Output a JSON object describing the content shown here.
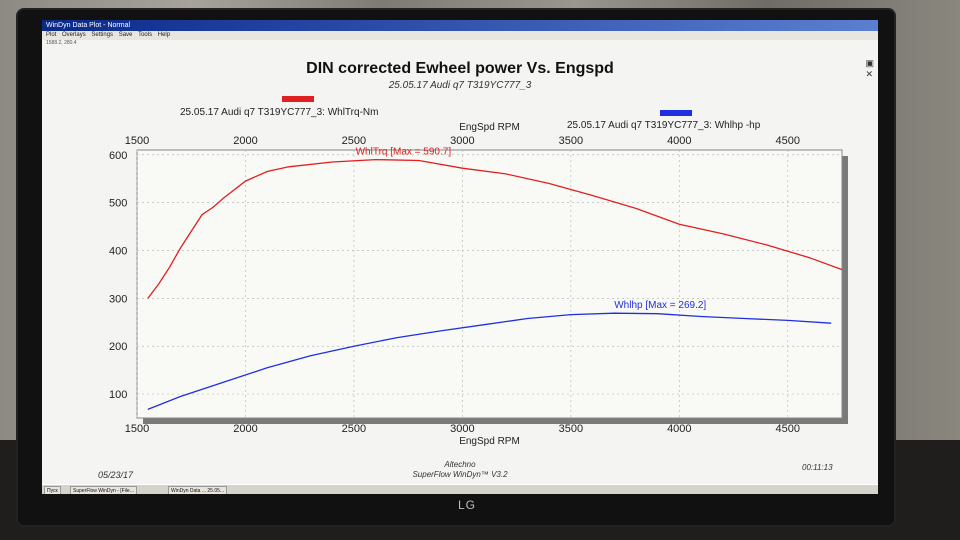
{
  "window": {
    "title": "WinDyn Data Plot - Normal",
    "menu": [
      "Plot",
      "Overlays",
      "Settings",
      "Save",
      "Tools",
      "Help"
    ],
    "coords": "1588.2, 280.4"
  },
  "monitor": {
    "brand": "LG"
  },
  "footer": {
    "date": "05/23/17",
    "time": "00:11:13",
    "company": "Altechno",
    "software": "SuperFlow WinDyn™ V3.2"
  },
  "taskbar": {
    "items": [
      "Пуск",
      "SuperFlow WinDyn - [File...",
      "WinDyn Data ... 25.05..."
    ]
  },
  "chart_data": {
    "type": "line",
    "title": "DIN corrected Ewheel power Vs. Engspd",
    "subtitle": "25.05.17 Audi q7 T319YC777_3",
    "xlabel": "EngSpd RPM",
    "xlabel_top": "EngSpd RPM",
    "xlim": [
      1500,
      4750
    ],
    "ylim_left": [
      50,
      610
    ],
    "ylim_right": [
      50,
      610
    ],
    "x_ticks": [
      1500,
      2000,
      2500,
      3000,
      3500,
      4000,
      4500
    ],
    "x_ticks_top": [
      1500,
      2000,
      2500,
      3000,
      3500,
      4000,
      4500
    ],
    "y_ticks_left": [
      100,
      200,
      300,
      400,
      500,
      600
    ],
    "grid": true,
    "legend_placement": "top",
    "series": [
      {
        "name": "25.05.17 Audi q7 T319YC777_3: WhlTrq-Nm",
        "label": "WhlTrq [Max = 590.7]",
        "color": "#e02020",
        "x": [
          1550,
          1600,
          1650,
          1700,
          1750,
          1800,
          1850,
          1900,
          2000,
          2100,
          2200,
          2400,
          2600,
          2800,
          3000,
          3200,
          3400,
          3600,
          3800,
          4000,
          4200,
          4400,
          4600,
          4800
        ],
        "y": [
          300,
          330,
          365,
          405,
          440,
          475,
          490,
          510,
          545,
          565,
          575,
          585,
          590,
          588,
          572,
          560,
          540,
          515,
          488,
          455,
          435,
          412,
          385,
          360
        ]
      },
      {
        "name": "25.05.17 Audi q7 T319YC777_3: Whlhp -hp",
        "label": "Whlhp  [Max = 269.2]",
        "color": "#2030e0",
        "x": [
          1550,
          1700,
          1900,
          2100,
          2300,
          2500,
          2700,
          2900,
          3100,
          3300,
          3500,
          3700,
          3900,
          4100,
          4300,
          4500,
          4700
        ],
        "y": [
          68,
          95,
          125,
          155,
          180,
          200,
          218,
          232,
          245,
          258,
          266,
          269,
          268,
          262,
          258,
          254,
          248
        ]
      }
    ]
  }
}
